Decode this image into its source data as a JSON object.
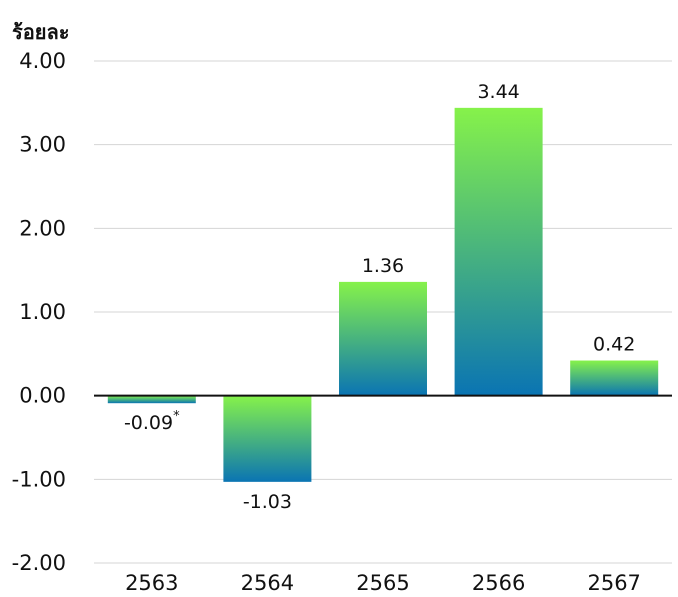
{
  "chart_data": {
    "type": "bar",
    "ylabel": "ร้อยละ",
    "xlabel": "",
    "title": "",
    "categories": [
      "2563",
      "2564",
      "2565",
      "2566",
      "2567"
    ],
    "values": [
      -0.09,
      -1.03,
      1.36,
      3.44,
      0.42
    ],
    "value_labels": [
      "-0.09",
      "-1.03",
      "1.36",
      "3.44",
      "0.42"
    ],
    "value_footnote": {
      "index": 0,
      "mark": "*"
    },
    "yticks": [
      "4.00",
      "3.00",
      "2.00",
      "1.00",
      "0.00",
      "-1.00",
      "-2.00"
    ],
    "ylim": [
      -2,
      4
    ],
    "grid": true,
    "bar_gradient": {
      "top": "#86f24a",
      "bottom": "#0a74b3"
    }
  }
}
